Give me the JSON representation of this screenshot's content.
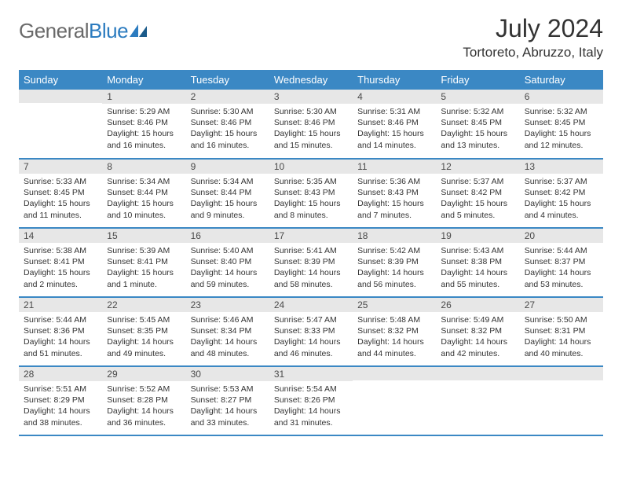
{
  "logo": {
    "text1": "General",
    "text2": "Blue",
    "icon_color": "#2b7bbf"
  },
  "title": "July 2024",
  "location": "Tortoreto, Abruzzo, Italy",
  "day_headers": [
    "Sunday",
    "Monday",
    "Tuesday",
    "Wednesday",
    "Thursday",
    "Friday",
    "Saturday"
  ],
  "header_bg": "#3b88c4",
  "header_fg": "#ffffff",
  "daynum_bg": "#e7e7e7",
  "border_color": "#3b88c4",
  "weeks": [
    [
      {
        "num": "",
        "sunrise": "",
        "sunset": "",
        "daylight": ""
      },
      {
        "num": "1",
        "sunrise": "Sunrise: 5:29 AM",
        "sunset": "Sunset: 8:46 PM",
        "daylight": "Daylight: 15 hours and 16 minutes."
      },
      {
        "num": "2",
        "sunrise": "Sunrise: 5:30 AM",
        "sunset": "Sunset: 8:46 PM",
        "daylight": "Daylight: 15 hours and 16 minutes."
      },
      {
        "num": "3",
        "sunrise": "Sunrise: 5:30 AM",
        "sunset": "Sunset: 8:46 PM",
        "daylight": "Daylight: 15 hours and 15 minutes."
      },
      {
        "num": "4",
        "sunrise": "Sunrise: 5:31 AM",
        "sunset": "Sunset: 8:46 PM",
        "daylight": "Daylight: 15 hours and 14 minutes."
      },
      {
        "num": "5",
        "sunrise": "Sunrise: 5:32 AM",
        "sunset": "Sunset: 8:45 PM",
        "daylight": "Daylight: 15 hours and 13 minutes."
      },
      {
        "num": "6",
        "sunrise": "Sunrise: 5:32 AM",
        "sunset": "Sunset: 8:45 PM",
        "daylight": "Daylight: 15 hours and 12 minutes."
      }
    ],
    [
      {
        "num": "7",
        "sunrise": "Sunrise: 5:33 AM",
        "sunset": "Sunset: 8:45 PM",
        "daylight": "Daylight: 15 hours and 11 minutes."
      },
      {
        "num": "8",
        "sunrise": "Sunrise: 5:34 AM",
        "sunset": "Sunset: 8:44 PM",
        "daylight": "Daylight: 15 hours and 10 minutes."
      },
      {
        "num": "9",
        "sunrise": "Sunrise: 5:34 AM",
        "sunset": "Sunset: 8:44 PM",
        "daylight": "Daylight: 15 hours and 9 minutes."
      },
      {
        "num": "10",
        "sunrise": "Sunrise: 5:35 AM",
        "sunset": "Sunset: 8:43 PM",
        "daylight": "Daylight: 15 hours and 8 minutes."
      },
      {
        "num": "11",
        "sunrise": "Sunrise: 5:36 AM",
        "sunset": "Sunset: 8:43 PM",
        "daylight": "Daylight: 15 hours and 7 minutes."
      },
      {
        "num": "12",
        "sunrise": "Sunrise: 5:37 AM",
        "sunset": "Sunset: 8:42 PM",
        "daylight": "Daylight: 15 hours and 5 minutes."
      },
      {
        "num": "13",
        "sunrise": "Sunrise: 5:37 AM",
        "sunset": "Sunset: 8:42 PM",
        "daylight": "Daylight: 15 hours and 4 minutes."
      }
    ],
    [
      {
        "num": "14",
        "sunrise": "Sunrise: 5:38 AM",
        "sunset": "Sunset: 8:41 PM",
        "daylight": "Daylight: 15 hours and 2 minutes."
      },
      {
        "num": "15",
        "sunrise": "Sunrise: 5:39 AM",
        "sunset": "Sunset: 8:41 PM",
        "daylight": "Daylight: 15 hours and 1 minute."
      },
      {
        "num": "16",
        "sunrise": "Sunrise: 5:40 AM",
        "sunset": "Sunset: 8:40 PM",
        "daylight": "Daylight: 14 hours and 59 minutes."
      },
      {
        "num": "17",
        "sunrise": "Sunrise: 5:41 AM",
        "sunset": "Sunset: 8:39 PM",
        "daylight": "Daylight: 14 hours and 58 minutes."
      },
      {
        "num": "18",
        "sunrise": "Sunrise: 5:42 AM",
        "sunset": "Sunset: 8:39 PM",
        "daylight": "Daylight: 14 hours and 56 minutes."
      },
      {
        "num": "19",
        "sunrise": "Sunrise: 5:43 AM",
        "sunset": "Sunset: 8:38 PM",
        "daylight": "Daylight: 14 hours and 55 minutes."
      },
      {
        "num": "20",
        "sunrise": "Sunrise: 5:44 AM",
        "sunset": "Sunset: 8:37 PM",
        "daylight": "Daylight: 14 hours and 53 minutes."
      }
    ],
    [
      {
        "num": "21",
        "sunrise": "Sunrise: 5:44 AM",
        "sunset": "Sunset: 8:36 PM",
        "daylight": "Daylight: 14 hours and 51 minutes."
      },
      {
        "num": "22",
        "sunrise": "Sunrise: 5:45 AM",
        "sunset": "Sunset: 8:35 PM",
        "daylight": "Daylight: 14 hours and 49 minutes."
      },
      {
        "num": "23",
        "sunrise": "Sunrise: 5:46 AM",
        "sunset": "Sunset: 8:34 PM",
        "daylight": "Daylight: 14 hours and 48 minutes."
      },
      {
        "num": "24",
        "sunrise": "Sunrise: 5:47 AM",
        "sunset": "Sunset: 8:33 PM",
        "daylight": "Daylight: 14 hours and 46 minutes."
      },
      {
        "num": "25",
        "sunrise": "Sunrise: 5:48 AM",
        "sunset": "Sunset: 8:32 PM",
        "daylight": "Daylight: 14 hours and 44 minutes."
      },
      {
        "num": "26",
        "sunrise": "Sunrise: 5:49 AM",
        "sunset": "Sunset: 8:32 PM",
        "daylight": "Daylight: 14 hours and 42 minutes."
      },
      {
        "num": "27",
        "sunrise": "Sunrise: 5:50 AM",
        "sunset": "Sunset: 8:31 PM",
        "daylight": "Daylight: 14 hours and 40 minutes."
      }
    ],
    [
      {
        "num": "28",
        "sunrise": "Sunrise: 5:51 AM",
        "sunset": "Sunset: 8:29 PM",
        "daylight": "Daylight: 14 hours and 38 minutes."
      },
      {
        "num": "29",
        "sunrise": "Sunrise: 5:52 AM",
        "sunset": "Sunset: 8:28 PM",
        "daylight": "Daylight: 14 hours and 36 minutes."
      },
      {
        "num": "30",
        "sunrise": "Sunrise: 5:53 AM",
        "sunset": "Sunset: 8:27 PM",
        "daylight": "Daylight: 14 hours and 33 minutes."
      },
      {
        "num": "31",
        "sunrise": "Sunrise: 5:54 AM",
        "sunset": "Sunset: 8:26 PM",
        "daylight": "Daylight: 14 hours and 31 minutes."
      },
      {
        "num": "",
        "sunrise": "",
        "sunset": "",
        "daylight": ""
      },
      {
        "num": "",
        "sunrise": "",
        "sunset": "",
        "daylight": ""
      },
      {
        "num": "",
        "sunrise": "",
        "sunset": "",
        "daylight": ""
      }
    ]
  ]
}
